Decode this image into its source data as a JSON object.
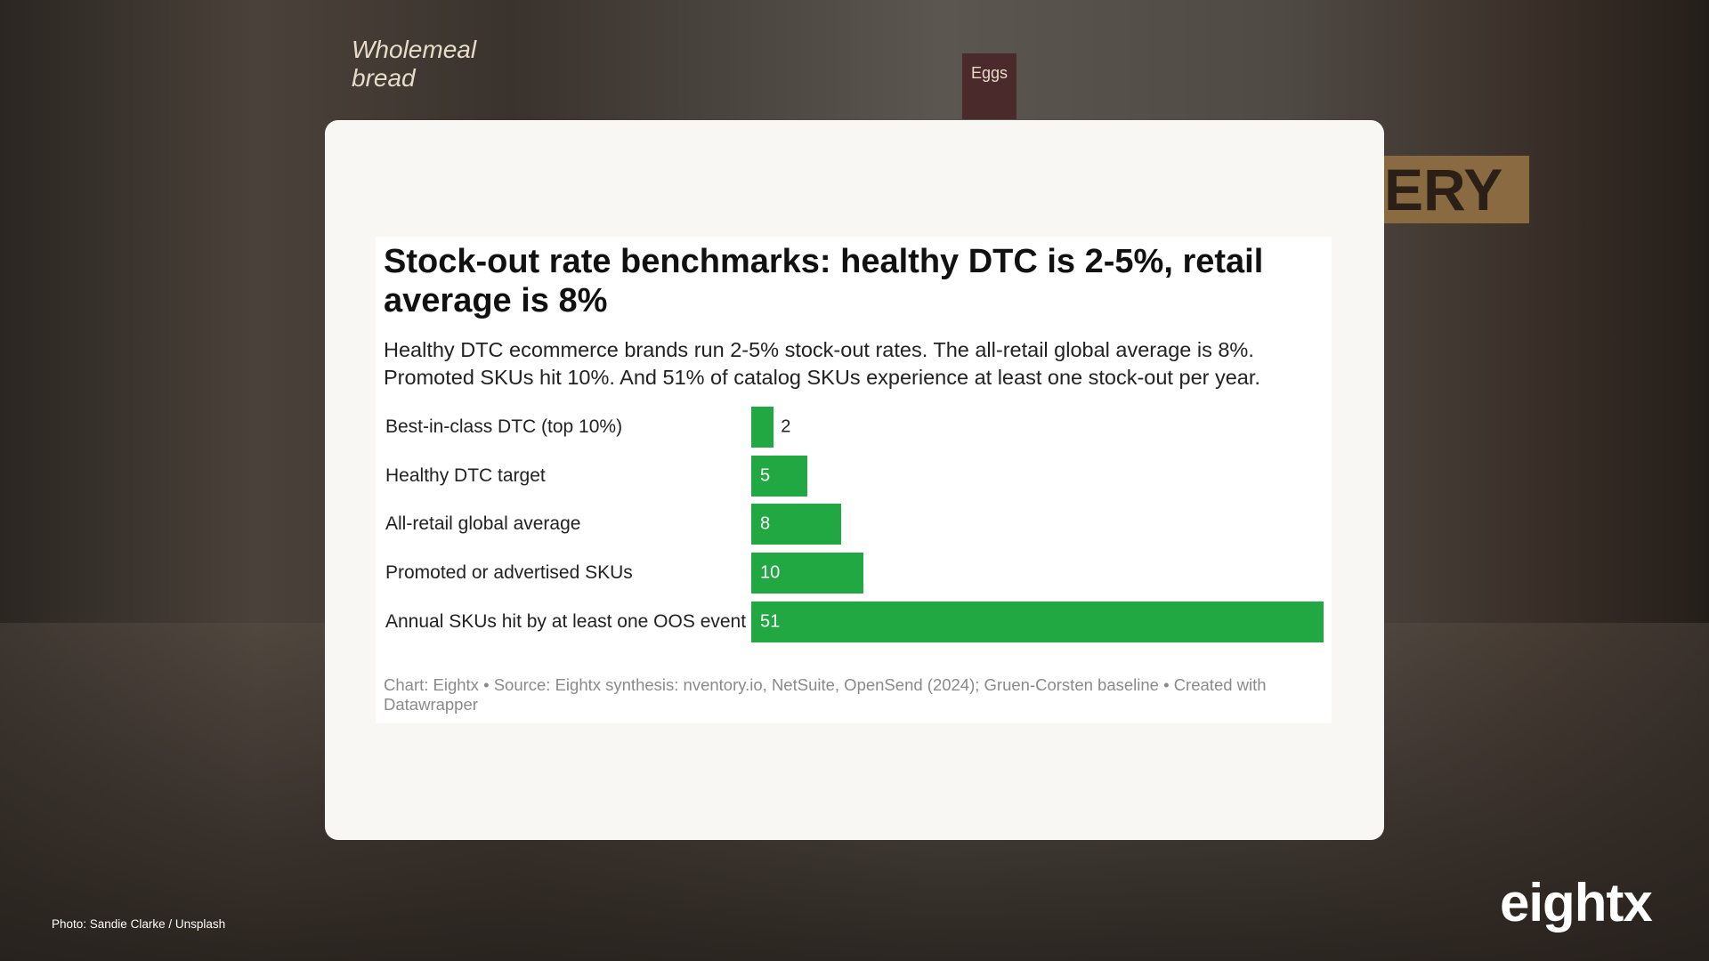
{
  "chart_data": {
    "type": "bar",
    "orientation": "horizontal",
    "title": "Stock-out rate benchmarks: healthy DTC is 2-5%, retail average is 8%",
    "subtitle": "Healthy DTC ecommerce brands run 2-5% stock-out rates. The all-retail global average is 8%. Promoted SKUs hit 10%. And 51% of catalog SKUs experience at least one stock-out per year.",
    "categories": [
      "Best-in-class DTC (top 10%)",
      "Healthy DTC target",
      "All-retail global average",
      "Promoted or advertised SKUs",
      "Annual SKUs hit by at least one OOS event"
    ],
    "values": [
      2,
      5,
      8,
      10,
      51
    ],
    "color": "#22a843",
    "source": "Chart: Eightx • Source: Eightx synthesis: nventory.io, NetSuite, OpenSend (2024); Gruen-Corsten baseline • Created with Datawrapper"
  },
  "background": {
    "signs": [
      "Wholemeal bread",
      "Eggs",
      "ERY"
    ]
  },
  "photo_credit": "Photo: Sandie Clarke / Unsplash",
  "logo": "eightx"
}
